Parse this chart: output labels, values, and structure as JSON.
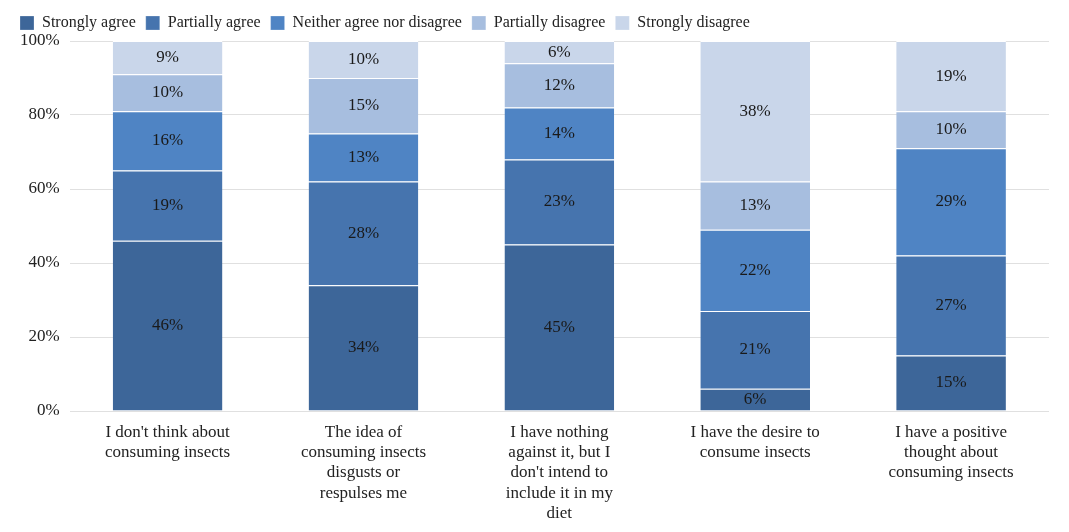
{
  "chart_data": {
    "type": "bar",
    "stacked": true,
    "categories": [
      "I don't think about consuming insects",
      "The idea of consuming insects disgusts or respulses me",
      "I have nothing against it, but I don't intend to include it in my diet",
      "I have the desire to consume insects",
      "I have a positive thought about consuming insects"
    ],
    "series": [
      {
        "name": "Strongly agree",
        "color": "#3d6699",
        "values": [
          46,
          34,
          45,
          6,
          15
        ],
        "value_labels": [
          "46%",
          "34%",
          "45%",
          "6%",
          "15%"
        ]
      },
      {
        "name": "Partially agree",
        "color": "#4674ae",
        "values": [
          19,
          28,
          23,
          21,
          27
        ],
        "value_labels": [
          "19%",
          "28%",
          "23%",
          "21%",
          "27%"
        ]
      },
      {
        "name": "Neither agree nor disagree",
        "color": "#4f84c4",
        "values": [
          16,
          13,
          14,
          22,
          29
        ],
        "value_labels": [
          "16%",
          "13%",
          "14%",
          "22%",
          "29%"
        ]
      },
      {
        "name": "Partially disagree",
        "color": "#a7bedf",
        "values": [
          10,
          15,
          12,
          13,
          10
        ],
        "value_labels": [
          "10%",
          "15%",
          "12%",
          "13%",
          "10%"
        ]
      },
      {
        "name": "Strongly disagree",
        "color": "#c9d6ea",
        "values": [
          9,
          10,
          6,
          38,
          19
        ],
        "value_labels": [
          "9%",
          "10%",
          "6%",
          "38%",
          "19%"
        ]
      }
    ],
    "ylim": [
      0,
      100
    ],
    "yticks": [
      {
        "value": 0,
        "label": "0%"
      },
      {
        "value": 20,
        "label": "20%"
      },
      {
        "value": 40,
        "label": "40%"
      },
      {
        "value": 60,
        "label": "60%"
      },
      {
        "value": 80,
        "label": "80%"
      },
      {
        "value": 100,
        "label": "100%"
      }
    ],
    "grid": "y",
    "legend": "top left"
  }
}
